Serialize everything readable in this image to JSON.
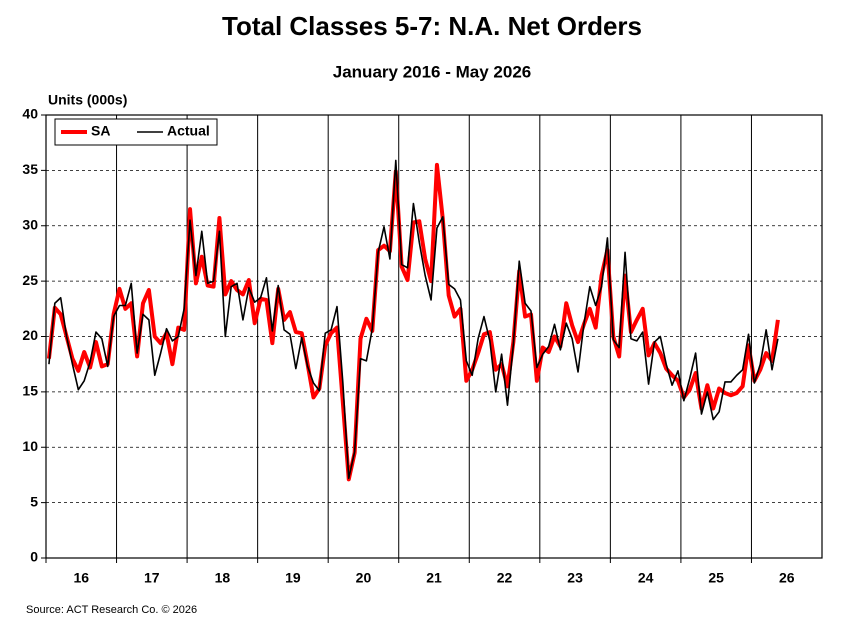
{
  "chart_data": {
    "type": "line",
    "title": "Total Classes 5-7: N.A. Net Orders",
    "subtitle": "January 2016 - May 2026",
    "y_label": "Units (000s)",
    "source": "Source: ACT Research Co. © 2026",
    "year_labels": [
      "16",
      "17",
      "18",
      "19",
      "20",
      "21",
      "22",
      "23",
      "24",
      "25",
      "26"
    ],
    "ylim": [
      0,
      40
    ],
    "yticks": [
      0,
      5,
      10,
      15,
      20,
      25,
      30,
      35,
      40
    ],
    "grid": true,
    "legend": "upper left",
    "series": [
      {
        "name": "SA",
        "color": "#ff0000",
        "values": [
          18,
          22.6,
          22,
          20,
          18,
          16.9,
          18.6,
          17.2,
          19.5,
          17.3,
          17.5,
          22,
          24.3,
          22.5,
          23,
          18.2,
          23,
          24.2,
          20,
          19.4,
          20.3,
          17.5,
          20.8,
          20.6,
          31.5,
          24.8,
          27.2,
          24.6,
          24.5,
          30.7,
          23.8,
          25,
          24.2,
          23.8,
          25.1,
          21.2,
          23.4,
          23.3,
          19.4,
          24.3,
          21.5,
          22.2,
          20.4,
          20.3,
          17.5,
          14.5,
          15.3,
          19.2,
          20.3,
          20.8,
          14,
          7.1,
          9.5,
          19.8,
          21.6,
          20.5,
          27.8,
          28.2,
          27.7,
          34.9,
          26.3,
          25.1,
          30.3,
          30.4,
          27,
          25,
          35.5,
          30.6,
          23.7,
          21.8,
          22.5,
          16,
          17,
          18.5,
          20.2,
          20.4,
          17,
          17.5,
          15.5,
          19.5,
          25.9,
          21.8,
          22,
          16,
          19,
          18.6,
          20,
          19.1,
          23,
          21,
          19.5,
          21.1,
          22.5,
          20.8,
          25.5,
          27.8,
          20,
          18.2,
          25.5,
          20.4,
          21.5,
          22.5,
          18.3,
          19.4,
          18.5,
          17.1,
          16.5,
          16,
          14.5,
          15.2,
          16.7,
          13.5,
          15.6,
          13.5,
          15.3,
          14.9,
          14.7,
          14.9,
          15.5,
          19.2,
          16,
          17,
          18.5,
          17.8,
          21.5
        ]
      },
      {
        "name": "Actual",
        "color": "#000000",
        "values": [
          17.5,
          23,
          23.5,
          20,
          17.5,
          15.2,
          16,
          17.7,
          20.4,
          19.8,
          17.3,
          21.8,
          22.8,
          22.8,
          24.8,
          18.5,
          22,
          21.5,
          16.5,
          18.5,
          20.7,
          19.6,
          20,
          22.5,
          30.5,
          25.5,
          29.5,
          24.8,
          25,
          29.5,
          20,
          24.5,
          24.8,
          21.5,
          24.4,
          23.1,
          23.5,
          25.3,
          20.5,
          24.6,
          20.6,
          20.2,
          17.1,
          19.9,
          17.3,
          15.8,
          15.1,
          20.3,
          20.6,
          22.7,
          15.8,
          7.2,
          9.6,
          18,
          17.8,
          20.7,
          27.6,
          29.9,
          27,
          35.9,
          26.5,
          26.2,
          32,
          28.5,
          25.5,
          23.3,
          29.8,
          30.8,
          24.7,
          24.3,
          23.3,
          17.8,
          16.5,
          19.8,
          21.8,
          19.6,
          15,
          18.4,
          13.8,
          19.3,
          26.8,
          23,
          22.3,
          17.2,
          18.4,
          19.1,
          21.1,
          18.8,
          21.2,
          19.8,
          16.8,
          21.1,
          24.5,
          22.8,
          24.5,
          28.9,
          19.7,
          19,
          27.6,
          19.8,
          19.6,
          20.4,
          15.7,
          19.5,
          20,
          17.5,
          15.6,
          16.9,
          14.2,
          16.2,
          18.5,
          13,
          15,
          12.5,
          13.2,
          15.9,
          15.9,
          16.5,
          17,
          20.2,
          15.8,
          17.5,
          20.6,
          17,
          19.8
        ]
      }
    ]
  }
}
